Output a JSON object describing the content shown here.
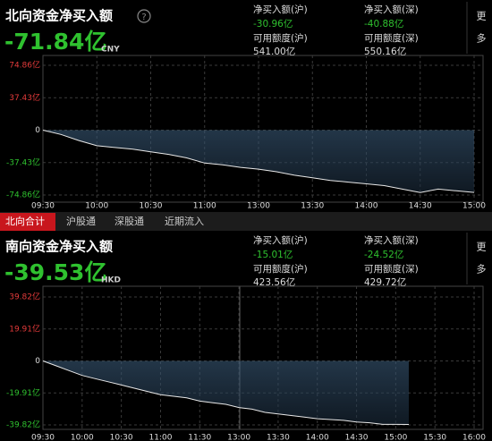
{
  "panels": [
    {
      "title": "北向资金净买入额",
      "amount": "-71.84亿",
      "currency": "CNY",
      "more": "更多",
      "stats": [
        {
          "label": "净买入额(沪)",
          "value": "-30.96亿"
        },
        {
          "label": "净买入额(深)",
          "value": "-40.88亿"
        },
        {
          "label": "可用额度(沪)",
          "value": "541.00亿"
        },
        {
          "label": "可用额度(深)",
          "value": "550.16亿"
        }
      ]
    },
    {
      "title": "南向资金净买入额",
      "amount": "-39.53亿",
      "currency": "HKD",
      "more": "更多",
      "stats": [
        {
          "label": "净买入额(沪)",
          "value": "-15.01亿"
        },
        {
          "label": "净买入额(深)",
          "value": "-24.52亿"
        },
        {
          "label": "可用额度(沪)",
          "value": "423.56亿"
        },
        {
          "label": "可用额度(深)",
          "value": "429.72亿"
        }
      ]
    }
  ],
  "tabs": [
    "北向合计",
    "沪股通",
    "深股通",
    "近期流入"
  ],
  "chart_data": [
    {
      "type": "line",
      "color": "#e8e8e8",
      "grid": true,
      "x": [
        "09:30",
        null,
        null,
        "10:00",
        null,
        null,
        "10:30",
        null,
        null,
        "11:00",
        null,
        null,
        "13:00",
        null,
        null,
        "13:30",
        null,
        null,
        "14:00",
        null,
        null,
        "14:30",
        null,
        null,
        "15:00"
      ],
      "values": [
        0,
        -5,
        -12,
        -18,
        -20,
        -22,
        -25,
        -28,
        -32,
        -38,
        -40,
        -43,
        -45,
        -48,
        -52,
        -55,
        -58,
        -60,
        -62,
        -64,
        -68,
        -72,
        -68,
        -70,
        -71.84
      ],
      "ylim": [
        -74.86,
        74.86
      ],
      "yticks": [
        {
          "value": 74.86,
          "label": "74.86亿"
        },
        {
          "value": 37.43,
          "label": "37.43亿"
        },
        0,
        {
          "value": -37.43,
          "label": "-37.43亿"
        },
        {
          "value": -74.86,
          "label": "-74.86亿"
        }
      ]
    },
    {
      "type": "line",
      "color": "#e8e8e8",
      "grid": true,
      "x": [
        "09:30",
        null,
        null,
        "10:00",
        null,
        null,
        "10:30",
        null,
        null,
        "11:00",
        null,
        null,
        "11:30",
        null,
        null,
        "13:00",
        null,
        null,
        "13:30",
        null,
        null,
        "14:00",
        null,
        null,
        "14:30",
        null,
        null,
        "15:00",
        null,
        null,
        "15:30",
        null,
        null,
        "16:00"
      ],
      "values": [
        0,
        -3,
        -6,
        -9,
        -11,
        -13,
        -15,
        -17,
        -19,
        -21,
        -22,
        -23,
        -25,
        -26,
        -27,
        -29,
        -30,
        -32,
        -33,
        -34,
        -35,
        -36,
        -36.5,
        -37,
        -38,
        -38.5,
        -39.5,
        -39.5,
        -39.53,
        null,
        null,
        null,
        null,
        null
      ],
      "ylim": [
        -39.82,
        39.82
      ],
      "yticks": [
        {
          "value": 39.82,
          "label": "39.82亿"
        },
        {
          "value": 19.91,
          "label": "19.91亿"
        },
        0,
        {
          "value": -19.91,
          "label": "-19.91亿"
        },
        {
          "value": -39.82,
          "label": "-39.82亿"
        }
      ]
    }
  ]
}
